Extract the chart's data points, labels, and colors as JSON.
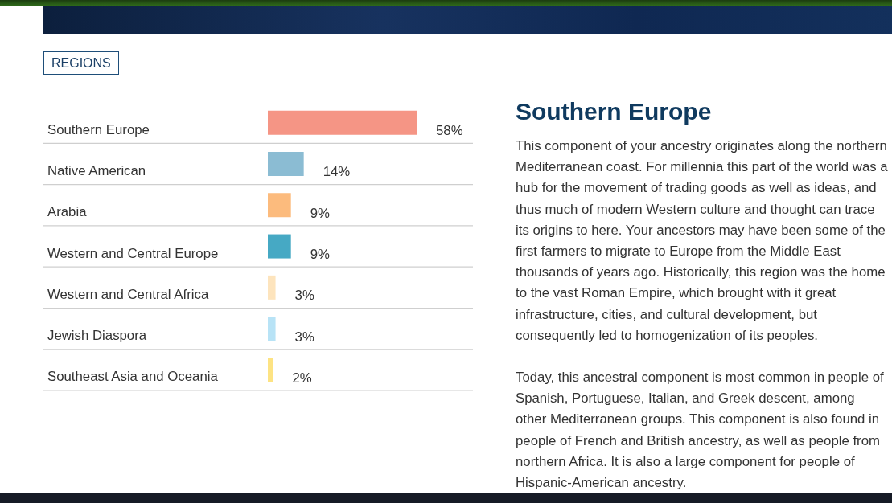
{
  "chart_data": [
    {
      "type": "bar",
      "title": "REGIONS",
      "orientation": "horizontal",
      "categories": [
        "Southern Europe",
        "Native American",
        "Arabia",
        "Western and Central Europe",
        "Western and Central Africa",
        "Jewish Diaspora",
        "Southeast Asia and Oceania"
      ],
      "values": [
        58,
        14,
        9,
        9,
        3,
        3,
        2
      ],
      "colors": [
        "#f59585",
        "#8bbcd3",
        "#fcbb7d",
        "#46a9c4",
        "#fde4bd",
        "#b8e3f6",
        "#fde383"
      ],
      "value_labels": [
        "58%",
        "14%",
        "9%",
        "9%",
        "3%",
        "3%",
        "2%"
      ],
      "grid": "y",
      "tick_labels": "y"
    },
    {
      "type": "other",
      "title": "Southern Europe",
      "annotations": [
        "This component of your ancestry originates along the northern Mediterranean coast. For millennia this part of the world was a hub for the movement of trading goods as well as ideas, and thus much of modern Western culture and thought can trace its origins to here. Your ancestors may have been some of the first farmers to migrate to Europe from the Middle East thousands of years ago. Historically, this region was the home to the vast Roman Empire, which brought with it great infrastructure, cities, and cultural development, but consequently led to homogenization of its peoples.",
        "Today, this ancestral component is most common in people of Spanish, Portuguese, Italian, and Greek descent, among other Mediterranean groups. This component is also found in people of French and British ancestry, as well as people from northern Africa. It is also a large component for people of Hispanic-American ancestry."
      ]
    }
  ]
}
